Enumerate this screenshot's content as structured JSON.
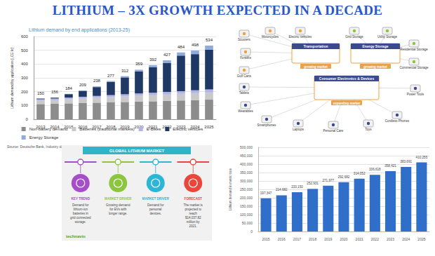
{
  "title": "LITHIUM – 3X GROWTH EXPECTED IN A DECADE",
  "chart_data": [
    {
      "type": "bar",
      "title": "Lithium demand by end applications (2013-25)",
      "y_label": "Lithium demand by application (LCE kt)",
      "source": "Source: Deutsche Bank, Industry data",
      "categories": [
        "2013",
        "2014",
        "2015",
        "2016",
        "2017",
        "2018",
        "2019",
        "2020",
        "2021",
        "2022",
        "2023",
        "2024",
        "2025"
      ],
      "series": [
        {
          "name": "Non-battery demand",
          "color": "#8c8c8c",
          "values": [
            110,
            112,
            115,
            117,
            120,
            122,
            125,
            128,
            130,
            133,
            136,
            139,
            142
          ]
        },
        {
          "name": "Batteries (traditional markets)",
          "color": "#c9c9c9",
          "values": [
            25,
            27,
            30,
            33,
            35,
            38,
            40,
            42,
            44,
            46,
            48,
            50,
            52
          ]
        },
        {
          "name": "E-Bikes",
          "color": "#b3b3e6",
          "values": [
            10,
            11,
            12,
            13,
            14,
            15,
            16,
            17,
            18,
            19,
            20,
            21,
            22
          ]
        },
        {
          "name": "Electric vehicles",
          "color": "#1f3864",
          "values": [
            5,
            6,
            25,
            43,
            64,
            95,
            122,
            160,
            185,
            211,
            258,
            262,
            288
          ]
        },
        {
          "name": "Energy Storage",
          "color": "#8faadc",
          "values": [
            0,
            0,
            2,
            3,
            5,
            7,
            9,
            12,
            15,
            18,
            22,
            26,
            30
          ]
        }
      ],
      "totals": [
        150,
        156,
        184,
        209,
        238,
        277,
        312,
        359,
        392,
        427,
        484,
        498,
        534
      ],
      "stacked": true,
      "ylim": [
        0,
        600
      ],
      "yticks": [
        0,
        100,
        200,
        300,
        400,
        500,
        600
      ],
      "grid": true,
      "legend": "bottom"
    },
    {
      "type": "bar",
      "y_label": "Lithium demand in metric tons",
      "categories": [
        "2015",
        "2016",
        "2017",
        "2018",
        "2019",
        "2020",
        "2021",
        "2022",
        "2023",
        "2024",
        "2025"
      ],
      "values": [
        197347,
        214682,
        233150,
        252931,
        271977,
        292682,
        314052,
        336618,
        358421,
        383691,
        410255
      ],
      "value_labels": [
        "197,347",
        "214,682",
        "233,150",
        "252,931",
        "271,977",
        "292,682",
        "314,052",
        "336,618",
        "358,421",
        "383,691",
        "410,255"
      ],
      "color": "#2f6ec9",
      "data_labels": true,
      "ylim": [
        0,
        500000
      ],
      "yticks": [
        0,
        {
          "value": 50000,
          "label": "50,000"
        },
        {
          "value": 100000,
          "label": "100,000"
        },
        {
          "value": 150000,
          "label": "150,000"
        },
        {
          "value": 200000,
          "label": "200,000"
        },
        {
          "value": 250000,
          "label": "250,000"
        },
        {
          "value": 300000,
          "label": "300,000"
        },
        {
          "value": 350000,
          "label": "350,000"
        },
        {
          "value": 400000,
          "label": "400,000"
        },
        {
          "value": 450000,
          "label": "450,000"
        },
        {
          "value": 500000,
          "label": "500,000"
        }
      ],
      "grid": true
    }
  ],
  "diagram": {
    "groups": [
      {
        "label": "Transportation",
        "note": "growing market",
        "items": [
          "Scooters",
          "Motorcycles",
          "Electric Vehicles",
          "Forklifts",
          "Golf Carts"
        ]
      },
      {
        "label": "Energy Storage",
        "note": "growing market",
        "items": [
          "Grid Storage",
          "Utility Storage",
          "Residential Storage",
          "Commercial Storage"
        ]
      },
      {
        "label": "Consumer Electronics & Devices",
        "note": "expanding market",
        "items": [
          "Tablets",
          "Wearables",
          "Smartphones",
          "Laptops",
          "Personal Care",
          "Toys",
          "Cordless Phones",
          "Power Tools"
        ]
      }
    ]
  },
  "infographic": {
    "banner": "GLOBAL LITHIUM MARKET",
    "cards": [
      {
        "heading": "KEY TREND",
        "text": "Demand for lithium-ion batteries in grid connected storage."
      },
      {
        "heading": "MARKET DRIVER",
        "text": "Growing demand for EVs with longer range."
      },
      {
        "heading": "MARKET DRIVER",
        "text": "Demand for personal devices."
      },
      {
        "heading": "FORECAST",
        "text": "The market is projected to reach $14,037.82 million by 2021."
      }
    ],
    "logo": "technavio"
  }
}
